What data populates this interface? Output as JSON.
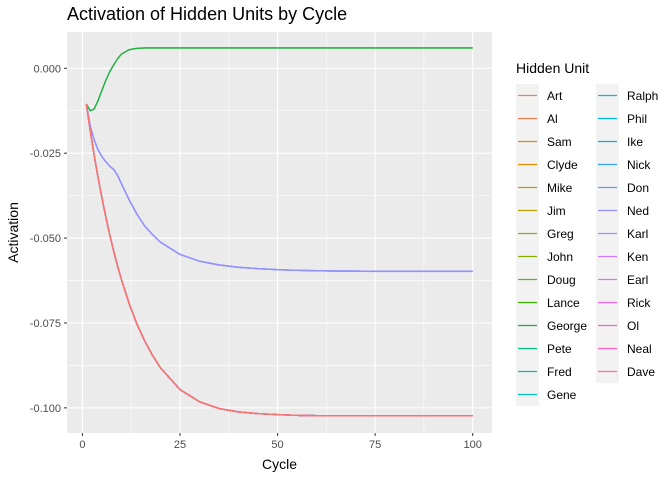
{
  "chart_data": {
    "type": "line",
    "title": "Activation of Hidden Units by Cycle",
    "xlabel": "Cycle",
    "ylabel": "Activation",
    "xlim": [
      -3.95,
      104.95
    ],
    "ylim": [
      -0.1074,
      0.0107
    ],
    "xticks": [
      0,
      25,
      50,
      75,
      100
    ],
    "xtick_labels": [
      "0",
      "25",
      "50",
      "75",
      "100"
    ],
    "yticks": [
      0.0,
      -0.025,
      -0.05,
      -0.075,
      -0.1
    ],
    "ytick_labels": [
      "0.000",
      "-0.025",
      "-0.050",
      "-0.075",
      "-0.100"
    ],
    "grid": true,
    "legend": {
      "title": "Hidden Unit",
      "position": "right",
      "columns": 2
    },
    "x": [
      1,
      2,
      3,
      4,
      5,
      6,
      7,
      8,
      9,
      10,
      12,
      14,
      16,
      18,
      20,
      25,
      30,
      35,
      40,
      45,
      50,
      55,
      60,
      65,
      70,
      75,
      80,
      85,
      90,
      95,
      100
    ],
    "series_groups": [
      {
        "members": [
          "Lance"
        ],
        "values": [
          -0.0105,
          -0.0125,
          -0.012,
          -0.0095,
          -0.0065,
          -0.0035,
          -0.001,
          0.001,
          0.0028,
          0.0042,
          0.0055,
          0.0059,
          0.006,
          0.006,
          0.006,
          0.006,
          0.006,
          0.006,
          0.006,
          0.006,
          0.006,
          0.006,
          0.006,
          0.006,
          0.006,
          0.006,
          0.006,
          0.006,
          0.006,
          0.006,
          0.006
        ]
      },
      {
        "members": [
          "Ned",
          "Karl",
          "Don"
        ],
        "values": [
          -0.0105,
          -0.017,
          -0.021,
          -0.024,
          -0.026,
          -0.0275,
          -0.0288,
          -0.0298,
          -0.0315,
          -0.034,
          -0.0388,
          -0.043,
          -0.0465,
          -0.049,
          -0.0512,
          -0.0548,
          -0.0568,
          -0.0579,
          -0.0586,
          -0.059,
          -0.0593,
          -0.0595,
          -0.0596,
          -0.0597,
          -0.0597,
          -0.0598,
          -0.0598,
          -0.0598,
          -0.0598,
          -0.0598,
          -0.0598
        ]
      },
      {
        "members": [
          "Art",
          "Al",
          "Sam",
          "Clyde",
          "Mike",
          "Jim",
          "Greg",
          "John",
          "Doug",
          "George",
          "Pete",
          "Fred",
          "Gene",
          "Ralph",
          "Phil",
          "Ike",
          "Nick",
          "Ken",
          "Earl",
          "Rick",
          "Ol",
          "Neal",
          "Dave"
        ],
        "values": [
          -0.0105,
          -0.0183,
          -0.0255,
          -0.0321,
          -0.0382,
          -0.0438,
          -0.049,
          -0.0538,
          -0.0582,
          -0.0622,
          -0.0694,
          -0.0754,
          -0.0804,
          -0.0846,
          -0.0882,
          -0.0946,
          -0.0982,
          -0.1002,
          -0.1012,
          -0.1017,
          -0.102,
          -0.1022,
          -0.1023,
          -0.1023,
          -0.1023,
          -0.1023,
          -0.1023,
          -0.1023,
          -0.1023,
          -0.1023,
          -0.1023
        ]
      }
    ],
    "series": [
      {
        "name": "Art",
        "color": "#F8766D"
      },
      {
        "name": "Al",
        "color": "#F07F4F"
      },
      {
        "name": "Sam",
        "color": "#E58700"
      },
      {
        "name": "Clyde",
        "color": "#D89000"
      },
      {
        "name": "Mike",
        "color": "#C99800"
      },
      {
        "name": "Jim",
        "color": "#B79F00"
      },
      {
        "name": "Greg",
        "color": "#A3A500"
      },
      {
        "name": "John",
        "color": "#8AAB00"
      },
      {
        "name": "Doug",
        "color": "#6BB100"
      },
      {
        "name": "Lance",
        "color": "#39B600"
      },
      {
        "name": "George",
        "color": "#00BA38"
      },
      {
        "name": "Pete",
        "color": "#00BF7D"
      },
      {
        "name": "Fred",
        "color": "#00C1A3"
      },
      {
        "name": "Gene",
        "color": "#00C0C0"
      },
      {
        "name": "Ralph",
        "color": "#00BCD8"
      },
      {
        "name": "Phil",
        "color": "#00B6EB"
      },
      {
        "name": "Ike",
        "color": "#00B0F6"
      },
      {
        "name": "Nick",
        "color": "#35A2FF"
      },
      {
        "name": "Don",
        "color": "#619CFF"
      },
      {
        "name": "Ned",
        "color": "#9590FF"
      },
      {
        "name": "Karl",
        "color": "#B983FF"
      },
      {
        "name": "Ken",
        "color": "#D376FF"
      },
      {
        "name": "Earl",
        "color": "#E76BF3"
      },
      {
        "name": "Rick",
        "color": "#F564E3"
      },
      {
        "name": "Ol",
        "color": "#FF61C3"
      },
      {
        "name": "Neal",
        "color": "#FF62BC"
      },
      {
        "name": "Dave",
        "color": "#FF6C91"
      }
    ],
    "group_line_colors": [
      "#22B348",
      "#9590FF",
      "#F8766D"
    ]
  }
}
